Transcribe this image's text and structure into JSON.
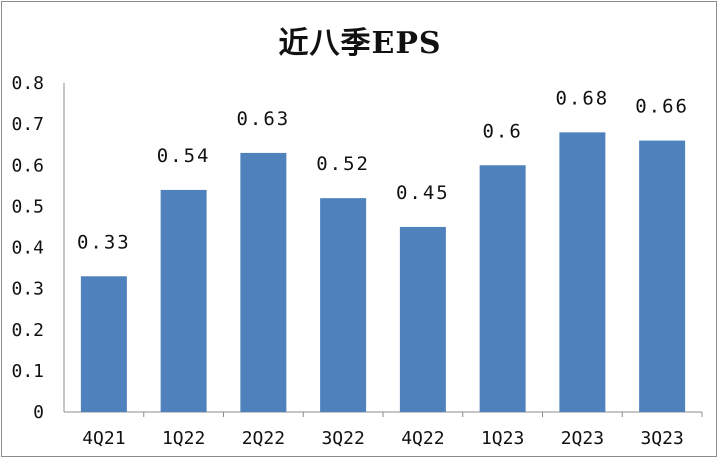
{
  "chart_data": {
    "type": "bar",
    "title": "近八季EPS",
    "xlabel": "",
    "ylabel": "",
    "categories": [
      "4Q21",
      "1Q22",
      "2Q22",
      "3Q22",
      "4Q22",
      "1Q23",
      "2Q23",
      "3Q23"
    ],
    "values": [
      0.33,
      0.54,
      0.63,
      0.52,
      0.45,
      0.6,
      0.68,
      0.66
    ],
    "data_labels": [
      "0.33",
      "0.54",
      "0.63",
      "0.52",
      "0.45",
      "0.6",
      "0.68",
      "0.66"
    ],
    "ylim": [
      0,
      0.8
    ],
    "yticks": [
      "0",
      "0.1",
      "0.2",
      "0.3",
      "0.4",
      "0.5",
      "0.6",
      "0.7",
      "0.8"
    ],
    "grid": false,
    "legend": "none",
    "bar_color": "#4f81bd"
  }
}
